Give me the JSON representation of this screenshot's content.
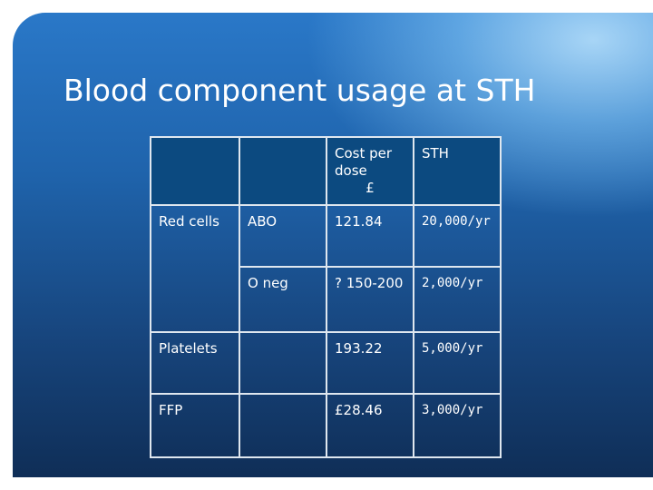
{
  "slide": {
    "title": "Blood component usage at STH"
  },
  "table": {
    "header": {
      "col3_line1": "Cost per",
      "col3_line2": "dose",
      "col3_line3": "£",
      "col4": "STH"
    },
    "rows": [
      {
        "component": "Red cells",
        "type": "ABO",
        "cost": "121.84",
        "usage": "20,000/yr"
      },
      {
        "component": "",
        "type": "O neg",
        "cost": "? 150-200",
        "usage": "2,000/yr"
      },
      {
        "component": "Platelets",
        "type": "",
        "cost": "193.22",
        "usage": "5,000/yr"
      },
      {
        "component": "FFP",
        "type": "",
        "cost": "£28.46",
        "usage": "3,000/yr"
      }
    ]
  },
  "colors": {
    "background_top": "#2a78c8",
    "background_bottom": "#0f2e57",
    "header_fill": "#0c4a80",
    "grid_lines": "#dfe7ef",
    "text": "#ffffff"
  }
}
